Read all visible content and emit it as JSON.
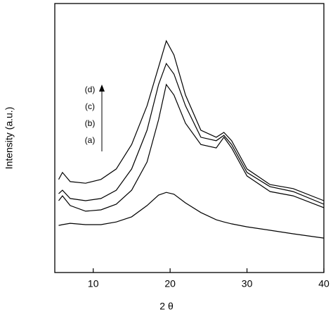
{
  "chart_data": {
    "type": "line",
    "xlabel": "2 θ",
    "ylabel": "Intensity (a.u.)",
    "x": [
      5.5,
      6,
      7,
      9,
      11,
      13,
      15,
      17,
      18.5,
      19.5,
      20.5,
      22,
      24,
      26,
      27,
      28,
      30,
      33,
      36,
      40
    ],
    "series": [
      {
        "name": "(a)",
        "color": "#000000",
        "values": [
          17.5,
          17.8,
          18.3,
          17.8,
          17.8,
          18.8,
          20.7,
          24.9,
          28.8,
          29.8,
          29.1,
          25.9,
          22.3,
          19.6,
          18.8,
          18.1,
          17.0,
          15.7,
          14.4,
          12.8
        ]
      },
      {
        "name": "(b)",
        "color": "#000000",
        "values": [
          26.7,
          28.5,
          24.9,
          22.8,
          23.3,
          25.4,
          30.6,
          41.1,
          56.8,
          69.9,
          66.0,
          55.5,
          47.6,
          46.3,
          50.3,
          46.3,
          35.9,
          30.1,
          28.5,
          24.1
        ]
      },
      {
        "name": "(c)",
        "color": "#000000",
        "values": [
          29.3,
          30.6,
          27.5,
          26.7,
          27.5,
          30.6,
          38.5,
          52.9,
          69.9,
          77.7,
          73.8,
          62.0,
          50.3,
          49.0,
          51.0,
          47.6,
          37.2,
          31.9,
          30.1,
          25.4
        ]
      },
      {
        "name": "(d)",
        "color": "#000000",
        "values": [
          34.6,
          37.2,
          33.8,
          33.2,
          34.6,
          38.5,
          47.6,
          62.0,
          76.4,
          86.1,
          80.9,
          66.0,
          52.9,
          50.3,
          52.1,
          49.0,
          38.5,
          32.7,
          31.2,
          26.7
        ]
      }
    ],
    "xlim": [
      5,
      40
    ],
    "xticks": [
      10,
      20,
      30,
      40
    ],
    "ylim": [
      0,
      100
    ]
  }
}
